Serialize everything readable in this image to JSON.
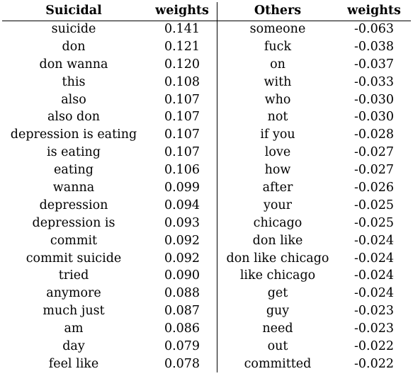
{
  "headers": [
    "Suicidal",
    "weights",
    "Others",
    "weights"
  ],
  "rows": [
    [
      "suicide",
      "0.141",
      "someone",
      "-0.063"
    ],
    [
      "don",
      "0.121",
      "fuck",
      "-0.038"
    ],
    [
      "don wanna",
      "0.120",
      "on",
      "-0.037"
    ],
    [
      "this",
      "0.108",
      "with",
      "-0.033"
    ],
    [
      "also",
      "0.107",
      "who",
      "-0.030"
    ],
    [
      "also don",
      "0.107",
      "not",
      "-0.030"
    ],
    [
      "depression is eating",
      "0.107",
      "if you",
      "-0.028"
    ],
    [
      "is eating",
      "0.107",
      "love",
      "-0.027"
    ],
    [
      "eating",
      "0.106",
      "how",
      "-0.027"
    ],
    [
      "wanna",
      "0.099",
      "after",
      "-0.026"
    ],
    [
      "depression",
      "0.094",
      "your",
      "-0.025"
    ],
    [
      "depression is",
      "0.093",
      "chicago",
      "-0.025"
    ],
    [
      "commit",
      "0.092",
      "don like",
      "-0.024"
    ],
    [
      "commit suicide",
      "0.092",
      "don like chicago",
      "-0.024"
    ],
    [
      "tried",
      "0.090",
      "like chicago",
      "-0.024"
    ],
    [
      "anymore",
      "0.088",
      "get",
      "-0.024"
    ],
    [
      "much just",
      "0.087",
      "guy",
      "-0.023"
    ],
    [
      "am",
      "0.086",
      "need",
      "-0.023"
    ],
    [
      "day",
      "0.079",
      "out",
      "-0.022"
    ],
    [
      "feel like",
      "0.078",
      "committed",
      "-0.022"
    ]
  ]
}
